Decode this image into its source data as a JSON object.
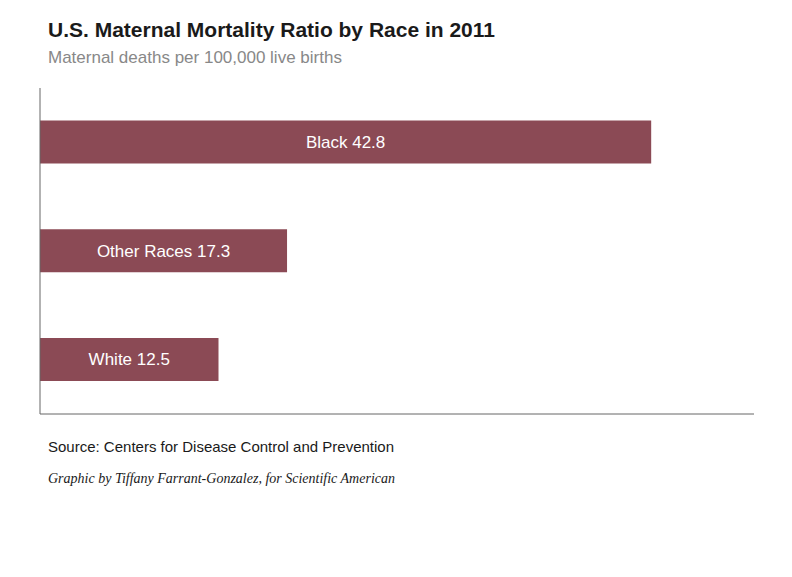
{
  "chart_data": {
    "type": "bar",
    "orientation": "horizontal",
    "title": "U.S. Maternal Mortality Ratio by Race in 2011",
    "subtitle": "Maternal deaths per 100,000 live births",
    "categories": [
      "Black",
      "Other Races",
      "White"
    ],
    "values": [
      42.8,
      17.3,
      12.5
    ],
    "value_labels": [
      "Black  42.8",
      "Other Races  17.3",
      "White  12.5"
    ],
    "data_labels": true,
    "color": "#8B4A55",
    "xlim": [
      0,
      50
    ],
    "tick_labels": false,
    "grid": false,
    "annotations": [
      "Source: Centers for Disease Control and Prevention",
      "Graphic by Tiffany Farrant-Gonzalez, for Scientific American"
    ]
  }
}
